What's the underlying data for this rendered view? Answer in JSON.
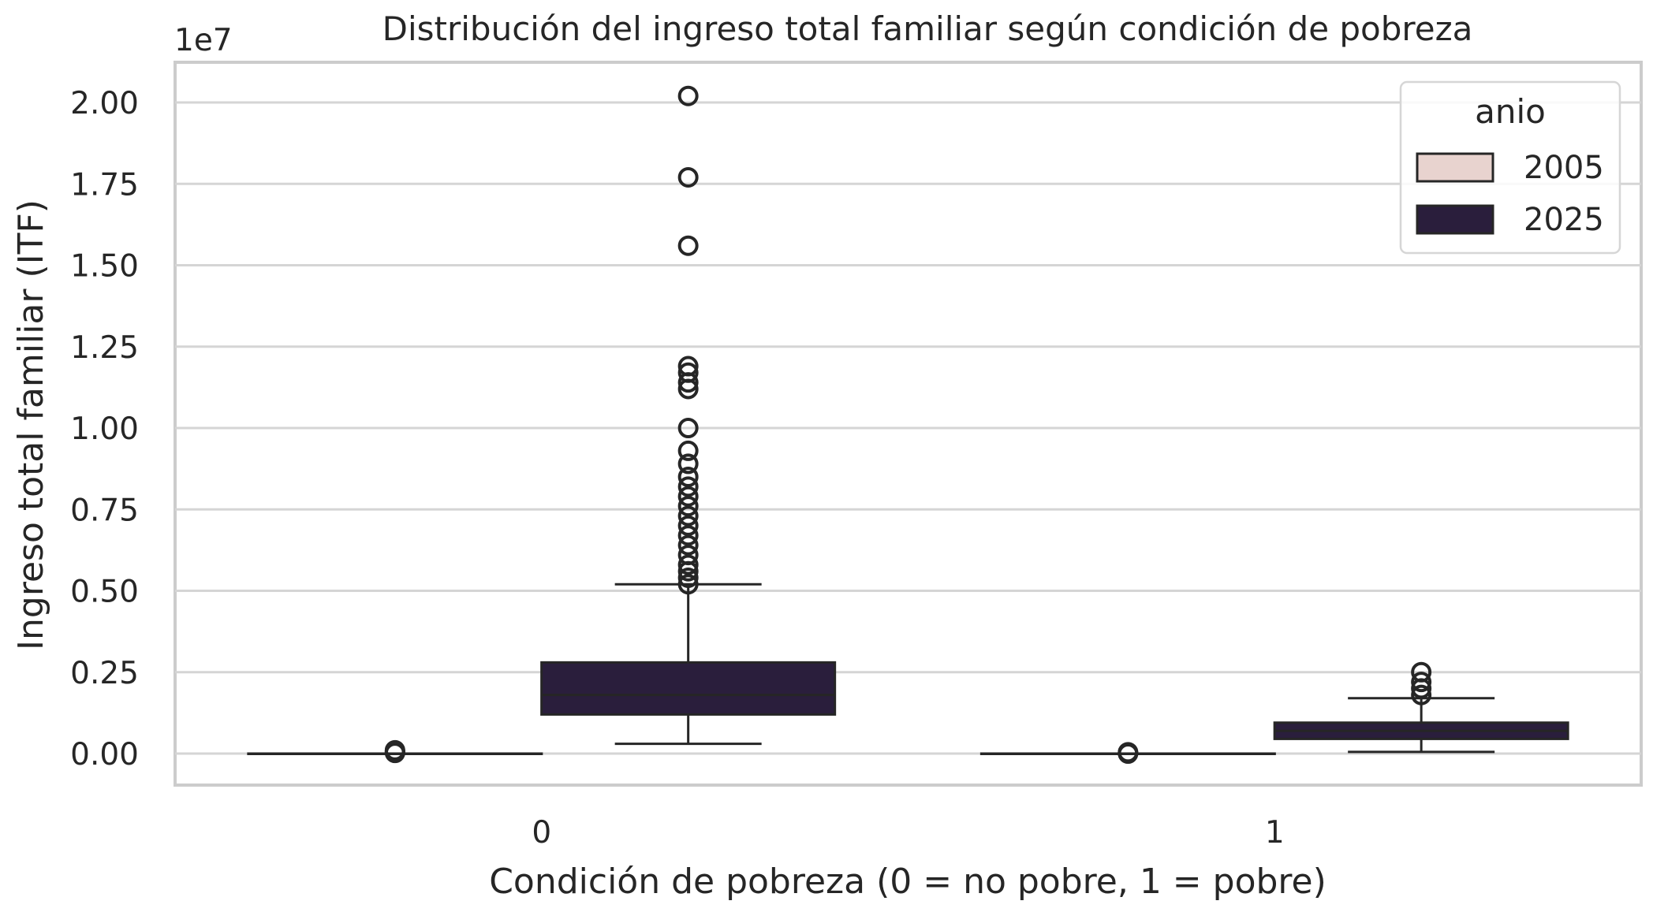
{
  "chart_data": {
    "type": "box",
    "title": "Distribución del ingreso total familiar según condición de pobreza",
    "xlabel": "Condición de pobreza (0 = no pobre, 1 = pobre)",
    "ylabel": "Ingreso total familiar (ITF)",
    "offset_label": "1e7",
    "y_scale": 10000000,
    "ylim": [
      -0.1,
      2.13
    ],
    "y_ticks": [
      0.0,
      0.25,
      0.5,
      0.75,
      1.0,
      1.25,
      1.5,
      1.75,
      2.0
    ],
    "y_tick_labels": [
      "0.00",
      "0.25",
      "0.50",
      "0.75",
      "1.00",
      "1.25",
      "1.50",
      "1.75",
      "2.00"
    ],
    "categories": [
      "0",
      "1"
    ],
    "grid": true,
    "legend": {
      "title": "anio",
      "position": "top-right",
      "entries": [
        {
          "label": "2005",
          "color": "#e8d3cf"
        },
        {
          "label": "2025",
          "color": "#2a1e3c"
        }
      ]
    },
    "series": [
      {
        "name": "2005",
        "color": "#e8d3cf",
        "boxes": [
          {
            "category": "0",
            "whisker_low": 0.0,
            "q1": 0.0,
            "median": 0.0,
            "q3": 0.0,
            "whisker_high": 0.0,
            "outliers": [
              0.002,
              0.004,
              0.006,
              0.008,
              0.01
            ]
          },
          {
            "category": "1",
            "whisker_low": 0.0,
            "q1": 0.0,
            "median": 0.0,
            "q3": 0.0,
            "whisker_high": 0.0,
            "outliers": [
              0.0,
              0.002,
              0.004
            ]
          }
        ]
      },
      {
        "name": "2025",
        "color": "#2a1e3c",
        "boxes": [
          {
            "category": "0",
            "whisker_low": 0.03,
            "q1": 0.12,
            "median": 0.18,
            "q3": 0.28,
            "whisker_high": 0.52,
            "outliers": [
              0.52,
              0.54,
              0.56,
              0.58,
              0.61,
              0.64,
              0.67,
              0.7,
              0.73,
              0.76,
              0.79,
              0.82,
              0.85,
              0.89,
              0.93,
              1.0,
              1.12,
              1.14,
              1.17,
              1.19,
              1.56,
              1.77,
              2.02
            ]
          },
          {
            "category": "1",
            "whisker_low": 0.005,
            "q1": 0.045,
            "median": 0.07,
            "q3": 0.095,
            "whisker_high": 0.17,
            "outliers": [
              0.18,
              0.2,
              0.22,
              0.25
            ]
          }
        ]
      }
    ]
  }
}
